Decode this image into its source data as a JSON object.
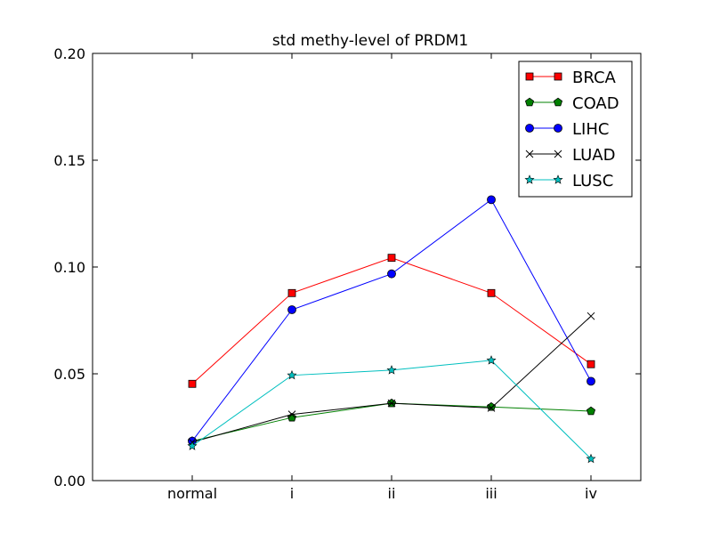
{
  "chart_data": {
    "type": "line",
    "title": "std methy-level of PRDM1",
    "xlabel": "",
    "ylabel": "",
    "categories": [
      "normal",
      "i",
      "ii",
      "iii",
      "iv"
    ],
    "ylim": [
      0.0,
      0.2
    ],
    "yticks": [
      "0.00",
      "0.05",
      "0.10",
      "0.15",
      "0.20"
    ],
    "grid": false,
    "legend_position": "top-right",
    "series": [
      {
        "name": "BRCA",
        "color": "#ff0000",
        "marker": "square",
        "values": [
          0.0453,
          0.0878,
          0.1043,
          0.0878,
          0.0545
        ]
      },
      {
        "name": "COAD",
        "color": "#008000",
        "marker": "pentagon",
        "values": [
          0.0185,
          0.0295,
          0.0362,
          0.0345,
          0.0325
        ]
      },
      {
        "name": "LIHC",
        "color": "#0000ff",
        "marker": "circle",
        "values": [
          0.0185,
          0.08,
          0.0968,
          0.1315,
          0.0465
        ]
      },
      {
        "name": "LUAD",
        "color": "#000000",
        "marker": "x",
        "values": [
          0.018,
          0.031,
          0.0362,
          0.034,
          0.077
        ]
      },
      {
        "name": "LUSC",
        "color": "#00bfbf",
        "marker": "star",
        "values": [
          0.0162,
          0.0493,
          0.0517,
          0.0563,
          0.0102
        ]
      }
    ]
  }
}
